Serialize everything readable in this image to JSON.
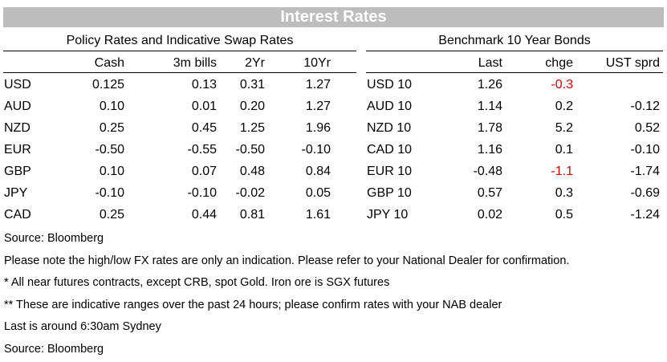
{
  "title": "Interest Rates",
  "policy": {
    "heading": "Policy Rates and Indicative Swap Rates",
    "columns": [
      "Cash",
      "3m bills",
      "2Yr",
      "10Yr"
    ],
    "rows": [
      {
        "label": "USD",
        "values": [
          "0.125",
          "0.13",
          "0.31",
          "1.27"
        ]
      },
      {
        "label": "AUD",
        "values": [
          "0.10",
          "0.01",
          "0.20",
          "1.27"
        ]
      },
      {
        "label": "NZD",
        "values": [
          "0.25",
          "0.45",
          "1.25",
          "1.96"
        ]
      },
      {
        "label": "EUR",
        "values": [
          "-0.50",
          "-0.55",
          "-0.50",
          "-0.10"
        ]
      },
      {
        "label": "GBP",
        "values": [
          "0.10",
          "0.07",
          "0.48",
          "0.84"
        ]
      },
      {
        "label": "JPY",
        "values": [
          "-0.10",
          "-0.10",
          "-0.02",
          "0.05"
        ]
      },
      {
        "label": "CAD",
        "values": [
          "0.25",
          "0.44",
          "0.81",
          "1.61"
        ]
      }
    ]
  },
  "bonds": {
    "heading": "Benchmark 10 Year Bonds",
    "columns": [
      "Last",
      "chge",
      "UST sprd"
    ],
    "rows": [
      {
        "label": "USD 10",
        "values": [
          "1.26",
          "-0.3",
          ""
        ],
        "chge_negative": true
      },
      {
        "label": "AUD 10",
        "values": [
          "1.14",
          "0.2",
          "-0.12"
        ],
        "chge_negative": false
      },
      {
        "label": "NZD 10",
        "values": [
          "1.78",
          "5.2",
          "0.52"
        ],
        "chge_negative": false
      },
      {
        "label": "CAD 10",
        "values": [
          "1.16",
          "0.1",
          "-0.10"
        ],
        "chge_negative": false
      },
      {
        "label": "EUR 10",
        "values": [
          "-0.48",
          "-1.1",
          "-1.74"
        ],
        "chge_negative": true
      },
      {
        "label": "GBP 10",
        "values": [
          "0.57",
          "0.3",
          "-0.69"
        ],
        "chge_negative": false
      },
      {
        "label": "JPY 10",
        "values": [
          "0.02",
          "0.5",
          "-1.24"
        ],
        "chge_negative": false
      }
    ]
  },
  "notes": [
    "Source: Bloomberg",
    "Please note the high/low FX rates are only an indication. Please refer to your National Dealer for confirmation.",
    "* All near futures contracts, except CRB, spot Gold.  Iron ore is SGX futures",
    "** These are indicative ranges over the past 24 hours; please confirm rates with your NAB dealer",
    "Last is around 6:30am Sydney",
    "Source: Bloomberg"
  ],
  "colors": {
    "banner": "#bdbdbd",
    "negative_change": "#e00000"
  }
}
